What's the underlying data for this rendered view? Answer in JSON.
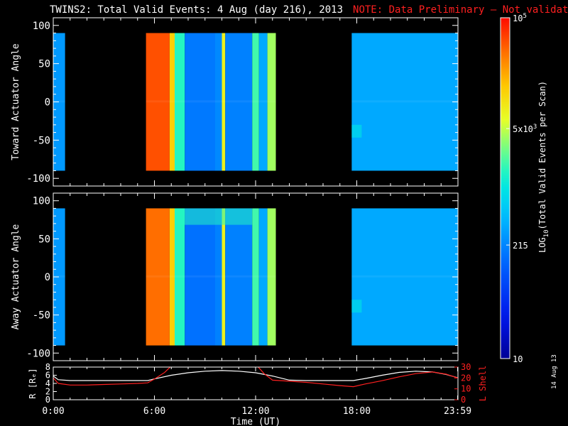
{
  "header": {
    "title": "TWINS2: Total Valid Events:  4 Aug (day 216), 2013",
    "note": "NOTE: Data Preliminary — Not validated"
  },
  "date_stamp": "14 Aug 13",
  "colors": {
    "background": "#000000",
    "axes": "#ffffff",
    "note": "#ff2020",
    "r_line": "#ffffff",
    "lshell_line": "#ff2020"
  },
  "chart_data": [
    {
      "type": "heatmap",
      "panel": "top",
      "title": "",
      "xlabel": "",
      "ylabel": "Toward Actuator Angle",
      "xlim": [
        0,
        24
      ],
      "ylim": [
        -110,
        110
      ],
      "yticks": [
        "100",
        "50",
        "0",
        "-50",
        "-100"
      ],
      "ytick_values": [
        100,
        50,
        0,
        -50,
        -100
      ],
      "data_coverage_hours": [
        [
          0.0,
          0.7
        ],
        [
          5.5,
          13.2
        ],
        [
          17.7,
          24.0
        ]
      ],
      "angle_range": [
        -90,
        90
      ],
      "colorscale": "log10",
      "zlim": [
        10,
        100000
      ],
      "time_columns_log10_events": [
        {
          "t": [
            0.0,
            0.7
          ],
          "v": 2.45
        },
        {
          "t": [
            5.5,
            6.9
          ],
          "v": 4.72
        },
        {
          "t": [
            6.9,
            7.2
          ],
          "v": 4.15
        },
        {
          "t": [
            7.2,
            7.8
          ],
          "v": 3.2
        },
        {
          "t": [
            7.8,
            9.6
          ],
          "v": 2.25
        },
        {
          "t": [
            9.6,
            10.0
          ],
          "v": 2.35
        },
        {
          "t": [
            10.0,
            10.2
          ],
          "v": 3.9
        },
        {
          "t": [
            10.2,
            11.8
          ],
          "v": 2.3
        },
        {
          "t": [
            11.8,
            12.2
          ],
          "v": 3.3
        },
        {
          "t": [
            12.2,
            12.7
          ],
          "v": 2.55
        },
        {
          "t": [
            12.7,
            13.2
          ],
          "v": 3.6
        },
        {
          "t": [
            17.7,
            24.0
          ],
          "v": 2.55
        }
      ]
    },
    {
      "type": "heatmap",
      "panel": "middle",
      "title": "",
      "xlabel": "",
      "ylabel": "Away Actuator Angle",
      "xlim": [
        0,
        24
      ],
      "ylim": [
        -110,
        110
      ],
      "yticks": [
        "100",
        "50",
        "0",
        "-50",
        "-100"
      ],
      "ytick_values": [
        100,
        50,
        0,
        -50,
        -100
      ],
      "data_coverage_hours": [
        [
          0.0,
          0.7
        ],
        [
          5.5,
          13.2
        ],
        [
          17.7,
          24.0
        ]
      ],
      "angle_range": [
        -90,
        90
      ],
      "colorscale": "log10",
      "zlim": [
        10,
        100000
      ],
      "time_columns_log10_events": [
        {
          "t": [
            0.0,
            0.7
          ],
          "v": 2.45
        },
        {
          "t": [
            5.5,
            6.9
          ],
          "v": 4.6
        },
        {
          "t": [
            6.9,
            7.2
          ],
          "v": 4.15
        },
        {
          "t": [
            7.2,
            7.8
          ],
          "v": 3.2
        },
        {
          "t": [
            7.8,
            9.6
          ],
          "v": 2.2
        },
        {
          "t": [
            9.6,
            10.0
          ],
          "v": 2.3
        },
        {
          "t": [
            10.0,
            10.2
          ],
          "v": 3.9
        },
        {
          "t": [
            10.2,
            11.8
          ],
          "v": 2.3
        },
        {
          "t": [
            11.8,
            12.2
          ],
          "v": 3.3
        },
        {
          "t": [
            12.2,
            12.7
          ],
          "v": 2.55
        },
        {
          "t": [
            12.7,
            13.2
          ],
          "v": 3.6
        },
        {
          "t": [
            17.7,
            24.0
          ],
          "v": 2.55
        }
      ]
    },
    {
      "type": "line",
      "panel": "bottom",
      "title": "",
      "xlabel": "Time (UT)",
      "xticks": [
        "0:00",
        "6:00",
        "12:00",
        "18:00",
        "23:59"
      ],
      "xtick_values": [
        0,
        6,
        12,
        18,
        23.98
      ],
      "ylabel": "R [Rₑ]",
      "ylim": [
        0,
        8
      ],
      "yticks": [
        "8",
        "6",
        "4",
        "2",
        "0"
      ],
      "ytick_values": [
        8,
        6,
        4,
        2,
        0
      ],
      "y2label": "L Shell",
      "y2lim": [
        0,
        30
      ],
      "y2ticks": [
        "30",
        "20",
        "10",
        "0"
      ],
      "y2tick_values": [
        30,
        20,
        10,
        0
      ],
      "series": [
        {
          "name": "R",
          "axis": "left",
          "x": [
            0,
            0.3,
            1,
            2,
            3,
            4,
            5,
            5.6,
            6,
            7,
            8,
            9,
            10,
            11,
            12,
            13,
            14,
            15,
            16,
            17,
            17.8,
            18.5,
            19.5,
            20.5,
            21.5,
            22.5,
            23.3,
            23.98
          ],
          "y": [
            5.8,
            4.9,
            4.7,
            4.7,
            4.7,
            4.7,
            4.7,
            4.7,
            5.1,
            6.0,
            6.6,
            7.0,
            7.15,
            7.0,
            6.6,
            5.8,
            4.8,
            4.7,
            4.7,
            4.7,
            4.7,
            5.2,
            6.0,
            6.7,
            7.0,
            6.8,
            6.2,
            5.4
          ]
        },
        {
          "name": "L Shell",
          "axis": "right",
          "x": [
            0,
            0.3,
            1,
            2,
            3,
            4,
            5,
            5.6,
            6,
            6.6,
            7.0,
            12.1,
            12.5,
            13,
            14,
            15,
            16,
            17,
            17.8,
            18.5,
            19.5,
            20.5,
            21.5,
            22.5,
            23.3,
            23.98
          ],
          "y": [
            20,
            15,
            13.5,
            13.5,
            14,
            14.5,
            15,
            15.5,
            19,
            25,
            31,
            31,
            24,
            18,
            17,
            16,
            14.5,
            13,
            12,
            14.5,
            17.5,
            21,
            24,
            25.5,
            23.5,
            20
          ]
        }
      ]
    }
  ],
  "colorbar": {
    "label": "LOG10(Total Valid Events per Scan)",
    "label_main": "LOG",
    "label_sub": "10",
    "label_rest": "(Total Valid Events per Scan)",
    "scale": "log10",
    "range": [
      10,
      100000
    ],
    "ticks": [
      {
        "value": 100000,
        "base": "10",
        "exp": "5"
      },
      {
        "value": 5000,
        "base": "5x10",
        "exp": "3"
      },
      {
        "value": 215,
        "base": "215",
        "exp": ""
      },
      {
        "value": 10,
        "base": "10",
        "exp": ""
      }
    ]
  }
}
